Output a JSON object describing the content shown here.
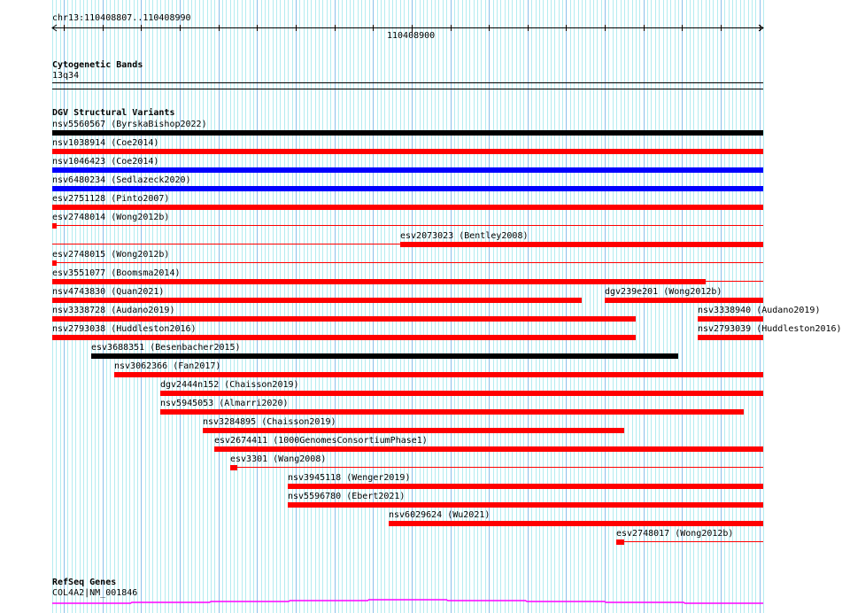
{
  "ruler": {
    "location": "chr13:110408807..110408990",
    "start": 110408807,
    "end": 110408990,
    "major_tick_label": "110408900",
    "major_tick_value": 110408900
  },
  "cytoband_track": {
    "title": "Cytogenetic Bands",
    "band": "13q34"
  },
  "dgv_track": {
    "title": "DGV Structural Variants",
    "colors": {
      "red": "#ff0000",
      "blue": "#0000ff",
      "black": "#000000"
    },
    "rows": [
      {
        "features": [
          {
            "label": "nsv5560567 (ByrskaBishop2022)",
            "start": 110408807,
            "end": 110408990,
            "color": "black"
          }
        ]
      },
      {
        "features": [
          {
            "label": "nsv1038914 (Coe2014)",
            "start": 110408807,
            "end": 110408990,
            "color": "red"
          }
        ]
      },
      {
        "features": [
          {
            "label": "nsv1046423 (Coe2014)",
            "start": 110408807,
            "end": 110408990,
            "color": "blue"
          }
        ]
      },
      {
        "features": [
          {
            "label": "nsv6480234 (Sedlazeck2020)",
            "start": 110408807,
            "end": 110408990,
            "color": "blue"
          }
        ]
      },
      {
        "features": [
          {
            "label": "esv2751128 (Pinto2007)",
            "start": 110408807,
            "end": 110408990,
            "color": "red"
          }
        ]
      },
      {
        "features": [
          {
            "label": "esv2748014 (Wong2012b)",
            "start": 110408807,
            "end": 110408807,
            "thin_end": 110408990,
            "color": "red"
          }
        ]
      },
      {
        "features": [
          {
            "label": "esv2073023 (Bentley2008)",
            "start": 110408897,
            "end": 110408990,
            "thin_start": 110408807,
            "color": "red"
          }
        ]
      },
      {
        "features": [
          {
            "label": "esv2748015 (Wong2012b)",
            "start": 110408807,
            "end": 110408807,
            "thin_end": 110408990,
            "color": "red"
          }
        ]
      },
      {
        "features": [
          {
            "label": "esv3551077 (Boomsma2014)",
            "start": 110408807,
            "end": 110408975,
            "thin_end": 110408990,
            "color": "red"
          }
        ]
      },
      {
        "features": [
          {
            "label": "nsv4743830 (Quan2021)",
            "start": 110408807,
            "end": 110408943,
            "color": "red"
          },
          {
            "label": "dgv239e201 (Wong2012b)",
            "start": 110408950,
            "end": 110408990,
            "color": "red"
          }
        ]
      },
      {
        "features": [
          {
            "label": "nsv3338728 (Audano2019)",
            "start": 110408807,
            "end": 110408957,
            "color": "red"
          },
          {
            "label": "nsv3338940 (Audano2019)",
            "start": 110408974,
            "end": 110408990,
            "color": "red"
          }
        ]
      },
      {
        "features": [
          {
            "label": "nsv2793038 (Huddleston2016)",
            "start": 110408807,
            "end": 110408957,
            "color": "red"
          },
          {
            "label": "nsv2793039 (Huddleston2016)",
            "start": 110408974,
            "end": 110408990,
            "color": "red"
          }
        ]
      },
      {
        "features": [
          {
            "label": "esv3688351 (Besenbacher2015)",
            "start": 110408817,
            "end": 110408968,
            "color": "black"
          }
        ]
      },
      {
        "features": [
          {
            "label": "nsv3062366 (Fan2017)",
            "start": 110408823,
            "end": 110408990,
            "color": "red"
          }
        ]
      },
      {
        "features": [
          {
            "label": "dgv2444n152 (Chaisson2019)",
            "start": 110408835,
            "end": 110408990,
            "color": "red"
          }
        ]
      },
      {
        "features": [
          {
            "label": "nsv5945053 (Almarri2020)",
            "start": 110408835,
            "end": 110408985,
            "color": "red"
          }
        ]
      },
      {
        "features": [
          {
            "label": "nsv3284895 (Chaisson2019)",
            "start": 110408846,
            "end": 110408954,
            "color": "red"
          }
        ]
      },
      {
        "features": [
          {
            "label": "esv2674411 (1000GenomesConsortiumPhase1)",
            "start": 110408849,
            "end": 110408990,
            "color": "red"
          }
        ]
      },
      {
        "features": [
          {
            "label": "esv3301 (Wang2008)",
            "start": 110408853,
            "end": 110408854,
            "thin_end": 110408990,
            "color": "red"
          }
        ]
      },
      {
        "features": [
          {
            "label": "nsv3945118 (Wenger2019)",
            "start": 110408868,
            "end": 110408990,
            "color": "red"
          }
        ]
      },
      {
        "features": [
          {
            "label": "nsv5596780 (Ebert2021)",
            "start": 110408868,
            "end": 110408990,
            "color": "red"
          }
        ]
      },
      {
        "features": [
          {
            "label": "nsv6029624 (Wu2021)",
            "start": 110408894,
            "end": 110408990,
            "color": "red"
          }
        ]
      },
      {
        "features": [
          {
            "label": "esv2748017 (Wong2012b)",
            "start": 110408953,
            "end": 110408954,
            "thin_end": 110408990,
            "color": "red"
          }
        ]
      }
    ]
  },
  "refseq_track": {
    "title": "RefSeq Genes",
    "gene": "COL4A2|NM_001846",
    "color": "#ff00ff"
  }
}
